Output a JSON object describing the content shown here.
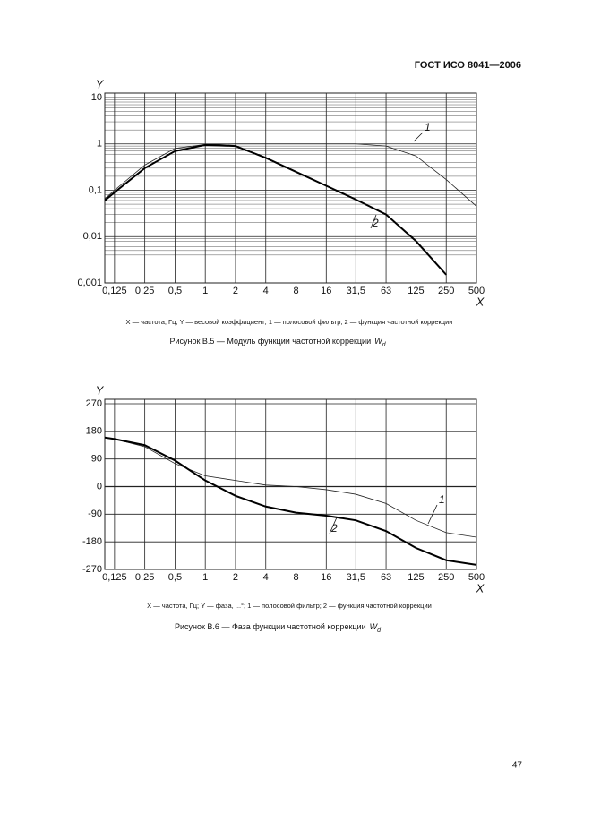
{
  "header": "ГОСТ ИСО 8041—2006",
  "page_number": "47",
  "chart_data": [
    {
      "type": "line",
      "x_scale": "log",
      "y_scale": "log",
      "grid": true,
      "minor_grid": true,
      "y_label": "Y",
      "x_label": "X",
      "note": "X — частота, Гц; Y — весовой коэффициент; 1 — полосовой фильтр; 2 — функция частотной коррекции",
      "caption": "Рисунок В.5 — Модуль функции частотной коррекции",
      "caption_symbol": "W",
      "caption_subscript": "d",
      "x": [
        0.1,
        0.125,
        0.25,
        0.5,
        1,
        2,
        4,
        8,
        16,
        31.5,
        63,
        125,
        250,
        500
      ],
      "series": [
        {
          "name": "1",
          "color": "#222222",
          "width": 0.8,
          "values": [
            0.065,
            0.1,
            0.35,
            0.8,
            0.97,
            1,
            1,
            1,
            1,
            1,
            0.9,
            0.55,
            0.17,
            0.045
          ]
        },
        {
          "name": "2",
          "color": "#000000",
          "width": 2,
          "values": [
            0.06,
            0.09,
            0.3,
            0.7,
            0.95,
            0.9,
            0.5,
            0.25,
            0.125,
            0.063,
            0.03,
            0.008,
            0.0015,
            null
          ]
        }
      ],
      "xlim": [
        0.1,
        500
      ],
      "xticks": [
        {
          "value": 0.125,
          "label": "0,125"
        },
        {
          "value": 0.25,
          "label": "0,25"
        },
        {
          "value": 0.5,
          "label": "0,5"
        },
        1,
        2,
        4,
        8,
        16,
        {
          "value": 31.5,
          "label": "31,5"
        },
        63,
        125,
        250,
        500
      ],
      "ylim": [
        0.001,
        10
      ],
      "yticks": [
        {
          "value": 0.001,
          "label": "0,001"
        },
        {
          "value": 0.01,
          "label": "0,01"
        },
        {
          "value": 0.1,
          "label": "0,1"
        },
        1,
        10
      ]
    },
    {
      "type": "line",
      "x_scale": "log",
      "grid": true,
      "y_label": "Y",
      "x_label": "X",
      "note": "X — частота, Гц; Y — фаза, ...°; 1 — полосовой фильтр; 2 — функция частотной коррекции",
      "caption": "Рисунок В.6 — Фаза функции частотной коррекции",
      "caption_symbol": "W",
      "caption_subscript": "d",
      "x": [
        0.1,
        0.125,
        0.25,
        0.5,
        1,
        2,
        4,
        8,
        16,
        31.5,
        63,
        125,
        250,
        500
      ],
      "series": [
        {
          "name": "1",
          "color": "#222222",
          "width": 0.8,
          "values": [
            160,
            155,
            130,
            75,
            35,
            20,
            5,
            0,
            -10,
            -25,
            -55,
            -110,
            -150,
            -165
          ]
        },
        {
          "name": "2",
          "color": "#000000",
          "width": 2,
          "values": [
            160,
            155,
            135,
            85,
            20,
            -30,
            -65,
            -85,
            -95,
            -110,
            -145,
            -200,
            -240,
            -255
          ]
        }
      ],
      "xlim": [
        0.1,
        500
      ],
      "xticks": [
        {
          "value": 0.125,
          "label": "0,125"
        },
        {
          "value": 0.25,
          "label": "0,25"
        },
        {
          "value": 0.5,
          "label": "0,5"
        },
        1,
        2,
        4,
        8,
        16,
        {
          "value": 31.5,
          "label": "31,5"
        },
        63,
        125,
        250,
        500
      ],
      "ylim": [
        -270,
        270
      ],
      "yticks": [
        -270,
        -180,
        -90,
        0,
        90,
        180,
        270
      ]
    }
  ]
}
